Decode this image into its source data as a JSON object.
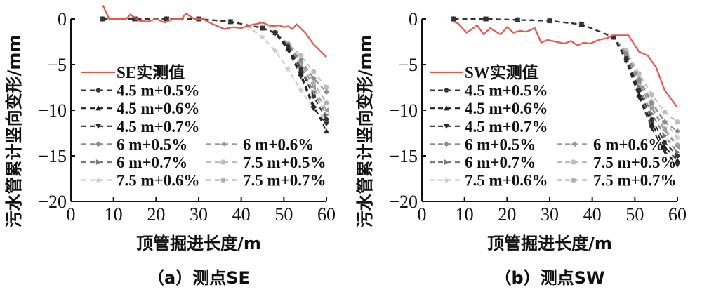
{
  "chart_data": [
    {
      "type": "line",
      "panel": "a",
      "caption": "（a）测点SE",
      "xlabel": "顶管掘进长度/m",
      "ylabel": "污水管累计竖向变形/mm",
      "xlim": [
        0,
        60
      ],
      "ylim": [
        -20,
        0
      ],
      "xticks": [
        "0",
        "10",
        "20",
        "30",
        "40",
        "50",
        "60"
      ],
      "yticks": [
        "0",
        "−5",
        "−10",
        "−15",
        "−20"
      ],
      "grid": false,
      "legend_position": "lower-left",
      "series": [
        {
          "name": "SE实测值",
          "color": "#e8574a",
          "style": "solid",
          "marker": "none",
          "x": [
            7.5,
            9,
            11,
            13,
            14,
            16,
            18,
            20,
            22,
            24,
            26,
            27,
            29,
            31,
            33,
            36,
            38,
            40,
            42,
            44,
            45,
            47,
            49,
            50,
            51,
            52,
            53,
            55,
            57,
            59,
            60
          ],
          "y": [
            1.5,
            0,
            0,
            0,
            0.5,
            -0.2,
            -0.3,
            0,
            -0.4,
            0,
            0,
            0.6,
            0,
            0,
            -0.5,
            -1.1,
            -0.9,
            -1.0,
            -0.7,
            -0.5,
            -0.4,
            -0.8,
            -0.7,
            -0.9,
            -0.8,
            -1.1,
            -0.6,
            -1.5,
            -2.8,
            -3.7,
            -4.2
          ]
        },
        {
          "name": "4.5 m+0.5%",
          "color": "#333333",
          "style": "dashed",
          "marker": "circle",
          "x": [
            7.5,
            15,
            22.5,
            30,
            37.5,
            45,
            48,
            51,
            54,
            57,
            60
          ],
          "y": [
            0,
            0,
            0,
            0,
            -0.3,
            -1.0,
            -1.5,
            -3.0,
            -5.5,
            -8.5,
            -11.0
          ]
        },
        {
          "name": "4.5 m+0.6%",
          "color": "#222222",
          "style": "dashed",
          "marker": "triangle-up",
          "x": [
            7.5,
            15,
            22.5,
            30,
            37.5,
            45,
            48,
            51,
            54,
            57,
            60
          ],
          "y": [
            0,
            0,
            0,
            0,
            -0.3,
            -1.0,
            -1.5,
            -3.2,
            -6.0,
            -9.5,
            -12.3
          ]
        },
        {
          "name": "4.5 m+0.7%",
          "color": "#2a2a2a",
          "style": "dashed",
          "marker": "triangle-down",
          "x": [
            7.5,
            15,
            22.5,
            30,
            37.5,
            45,
            48,
            51,
            54,
            57,
            60
          ],
          "y": [
            0,
            0,
            0,
            0,
            -0.3,
            -1.0,
            -1.6,
            -3.4,
            -6.3,
            -9.8,
            -11.5
          ]
        },
        {
          "name": "6 m+0.5%",
          "color": "#8a8a8a",
          "style": "dashed",
          "marker": "diamond",
          "x": [
            7.5,
            15,
            22.5,
            30,
            37.5,
            45,
            48,
            51,
            54,
            57,
            60
          ],
          "y": [
            0,
            0,
            0,
            0,
            -0.3,
            -1.0,
            -1.5,
            -2.8,
            -4.5,
            -6.5,
            -8.0
          ]
        },
        {
          "name": "6 m+0.6%",
          "color": "#9a9a9a",
          "style": "dashed",
          "marker": "triangle-left",
          "x": [
            7.5,
            15,
            22.5,
            30,
            37.5,
            45,
            48,
            51,
            54,
            57,
            60
          ],
          "y": [
            0,
            0,
            0,
            0,
            -0.3,
            -1.0,
            -1.5,
            -2.9,
            -4.8,
            -7.5,
            -10.0
          ]
        },
        {
          "name": "6 m+0.7%",
          "color": "#7a7a7a",
          "style": "dashed",
          "marker": "triangle-right",
          "x": [
            7.5,
            15,
            22.5,
            30,
            37.5,
            45,
            48,
            51,
            54,
            57,
            60
          ],
          "y": [
            0,
            0,
            0,
            0,
            -0.3,
            -1.0,
            -1.5,
            -3.0,
            -5.2,
            -8.0,
            -10.5
          ]
        },
        {
          "name": "7.5 m+0.5%",
          "color": "#bdbdbd",
          "style": "dashed",
          "marker": "hexagon",
          "x": [
            7.5,
            15,
            22.5,
            30,
            37.5,
            45,
            48,
            51,
            54,
            57,
            60
          ],
          "y": [
            0,
            0,
            0,
            0,
            -0.3,
            -1.0,
            -1.5,
            -2.7,
            -4.0,
            -5.8,
            -7.5
          ]
        },
        {
          "name": "7.5 m+0.6%",
          "color": "#c8c8c8",
          "style": "dashed",
          "marker": "star",
          "x": [
            7.5,
            15,
            22.5,
            30,
            37.5,
            42,
            45,
            48,
            51,
            54,
            57,
            60
          ],
          "y": [
            0,
            0,
            0,
            0,
            -0.3,
            -1.0,
            -2.0,
            -3.5,
            -5.5,
            -7.8,
            -9.8,
            -11.0
          ]
        },
        {
          "name": "7.5 m+0.7%",
          "color": "#b0b0b0",
          "style": "dashed",
          "marker": "pentagon",
          "x": [
            7.5,
            15,
            22.5,
            30,
            37.5,
            45,
            48,
            51,
            54,
            57,
            60
          ],
          "y": [
            0,
            0,
            0,
            0,
            -0.3,
            -1.0,
            -1.5,
            -2.8,
            -4.6,
            -7.0,
            -9.2
          ]
        }
      ]
    },
    {
      "type": "line",
      "panel": "b",
      "caption": "（b）测点SW",
      "xlabel": "顶管掘进长度/m",
      "ylabel": "污水管累计竖向变形/mm",
      "xlim": [
        0,
        60
      ],
      "ylim": [
        -20,
        0
      ],
      "xticks": [
        "0",
        "10",
        "20",
        "30",
        "40",
        "50",
        "60"
      ],
      "yticks": [
        "0",
        "−5",
        "−10",
        "−15",
        "−20"
      ],
      "grid": false,
      "legend_position": "lower-left",
      "series": [
        {
          "name": "SW实测值",
          "color": "#e8574a",
          "style": "solid",
          "marker": "none",
          "x": [
            7.5,
            8.5,
            10.5,
            13,
            14.5,
            16,
            18.5,
            20,
            21.5,
            23,
            24.5,
            26.5,
            28,
            29.5,
            31.5,
            33.5,
            35,
            36.5,
            38,
            39.5,
            41.5,
            43.5,
            45,
            46.5,
            48.5,
            51,
            53,
            55,
            57,
            60
          ],
          "y": [
            -0.3,
            -0.5,
            -1.5,
            -0.7,
            -1.7,
            -1.0,
            -1.7,
            -0.9,
            -1.5,
            -1.3,
            -1.4,
            -1.0,
            -2.6,
            -2.3,
            -2.5,
            -2.7,
            -2.4,
            -2.9,
            -2.6,
            -2.7,
            -2.3,
            -2.1,
            -1.8,
            -1.8,
            -1.8,
            -3.6,
            -4.0,
            -5.3,
            -7.8,
            -9.7
          ]
        },
        {
          "name": "4.5 m+0.5%",
          "color": "#333333",
          "style": "dashed",
          "marker": "circle",
          "x": [
            7.5,
            15,
            22.5,
            30,
            37.5,
            45,
            48,
            51,
            54,
            57,
            60
          ],
          "y": [
            0,
            0,
            -0.1,
            -0.2,
            -0.6,
            -2.0,
            -4.3,
            -7.8,
            -11.0,
            -13.5,
            -15.0
          ]
        },
        {
          "name": "4.5 m+0.6%",
          "color": "#222222",
          "style": "dashed",
          "marker": "triangle-up",
          "x": [
            7.5,
            15,
            22.5,
            30,
            37.5,
            45,
            48,
            51,
            54,
            57,
            60
          ],
          "y": [
            0,
            0,
            -0.1,
            -0.2,
            -0.6,
            -2.0,
            -4.5,
            -8.3,
            -11.5,
            -14.0,
            -15.5
          ]
        },
        {
          "name": "4.5 m+0.7%",
          "color": "#2a2a2a",
          "style": "dashed",
          "marker": "triangle-down",
          "x": [
            7.5,
            15,
            22.5,
            30,
            37.5,
            45,
            48,
            51,
            54,
            57,
            60
          ],
          "y": [
            0,
            0,
            -0.1,
            -0.2,
            -0.6,
            -2.0,
            -4.6,
            -8.6,
            -12.0,
            -14.5,
            -16.0
          ]
        },
        {
          "name": "6 m+0.5%",
          "color": "#8a8a8a",
          "style": "dashed",
          "marker": "diamond",
          "x": [
            7.5,
            15,
            22.5,
            30,
            37.5,
            45,
            48,
            51,
            54,
            57,
            60
          ],
          "y": [
            0,
            0,
            -0.1,
            -0.2,
            -0.6,
            -2.0,
            -3.8,
            -6.6,
            -9.2,
            -11.3,
            -12.3
          ]
        },
        {
          "name": "6 m+0.6%",
          "color": "#9a9a9a",
          "style": "dashed",
          "marker": "triangle-left",
          "x": [
            7.5,
            15,
            22.5,
            30,
            37.5,
            45,
            48,
            51,
            54,
            57,
            60
          ],
          "y": [
            0,
            0,
            -0.1,
            -0.2,
            -0.6,
            -2.0,
            -4.0,
            -7.0,
            -9.8,
            -12.2,
            -14.0
          ]
        },
        {
          "name": "6 m+0.7%",
          "color": "#7a7a7a",
          "style": "dashed",
          "marker": "triangle-right",
          "x": [
            7.5,
            15,
            22.5,
            30,
            37.5,
            45,
            48,
            51,
            54,
            57,
            60
          ],
          "y": [
            0,
            0,
            -0.1,
            -0.2,
            -0.6,
            -2.0,
            -4.2,
            -7.4,
            -10.4,
            -12.8,
            -14.6
          ]
        },
        {
          "name": "7.5 m+0.5%",
          "color": "#bdbdbd",
          "style": "dashed",
          "marker": "hexagon",
          "x": [
            7.5,
            15,
            22.5,
            30,
            37.5,
            45,
            48,
            51,
            54,
            57,
            60
          ],
          "y": [
            0,
            0,
            -0.1,
            -0.2,
            -0.6,
            -2.0,
            -3.5,
            -6.0,
            -8.3,
            -10.2,
            -11.3
          ]
        },
        {
          "name": "7.5 m+0.6%",
          "color": "#c8c8c8",
          "style": "dashed",
          "marker": "star",
          "x": [
            7.5,
            15,
            22.5,
            30,
            37.5,
            45,
            48,
            51,
            54,
            57,
            60
          ],
          "y": [
            0,
            0,
            -0.1,
            -0.2,
            -0.6,
            -2.0,
            -3.7,
            -6.4,
            -9.0,
            -11.2,
            -13.0
          ]
        },
        {
          "name": "7.5 m+0.7%",
          "color": "#b0b0b0",
          "style": "dashed",
          "marker": "pentagon",
          "x": [
            7.5,
            15,
            22.5,
            30,
            37.5,
            45,
            48,
            51,
            54,
            57,
            60
          ],
          "y": [
            0,
            0,
            -0.1,
            -0.2,
            -0.6,
            -2.0,
            -3.9,
            -6.8,
            -9.6,
            -12.0,
            -13.8
          ]
        }
      ]
    }
  ]
}
